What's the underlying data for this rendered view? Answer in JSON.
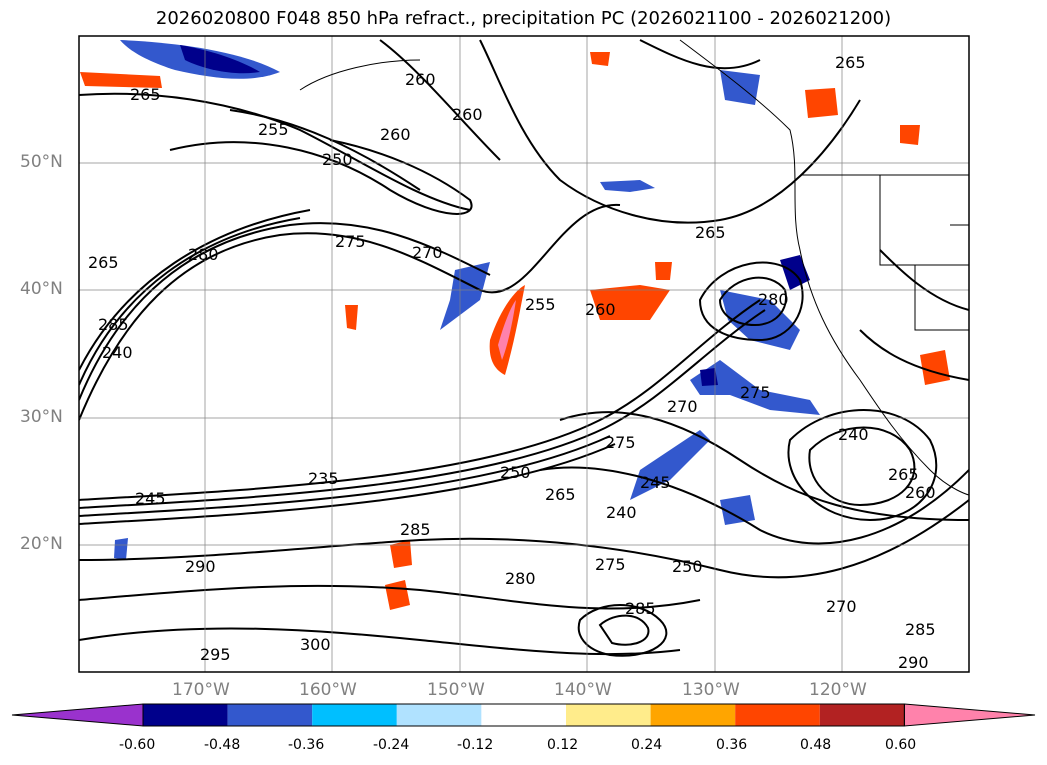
{
  "title": "2026020800 F048 850 hPa refract., precipitation PC (2026021100 - 2026021200)",
  "lat_labels": [
    "50°N",
    "40°N",
    "30°N",
    "20°N"
  ],
  "lon_labels": [
    "170°W",
    "160°W",
    "150°W",
    "140°W",
    "130°W",
    "120°W"
  ],
  "contour_labels": [
    "265",
    "255",
    "260",
    "260",
    "250",
    "265",
    "265",
    "275",
    "270",
    "265",
    "255",
    "260",
    "280",
    "280",
    "285",
    "240",
    "235",
    "245",
    "250",
    "265",
    "270",
    "275",
    "245",
    "240",
    "285",
    "290",
    "280",
    "275",
    "250",
    "285",
    "270",
    "240",
    "285",
    "295",
    "300",
    "290",
    "260",
    "275",
    "260",
    "265"
  ],
  "colorbar": {
    "ticks": [
      "-0.60",
      "-0.48",
      "-0.36",
      "-0.24",
      "-0.12",
      "0.12",
      "0.24",
      "0.36",
      "0.48",
      "0.60"
    ],
    "colors": [
      "#9a32cd",
      "#00008b",
      "#3358cd",
      "#00bfff",
      "#b0e2ff",
      "#ffffff",
      "#ffec8b",
      "#ffa500",
      "#ff4500",
      "#b22222",
      "#ff82ab"
    ]
  }
}
